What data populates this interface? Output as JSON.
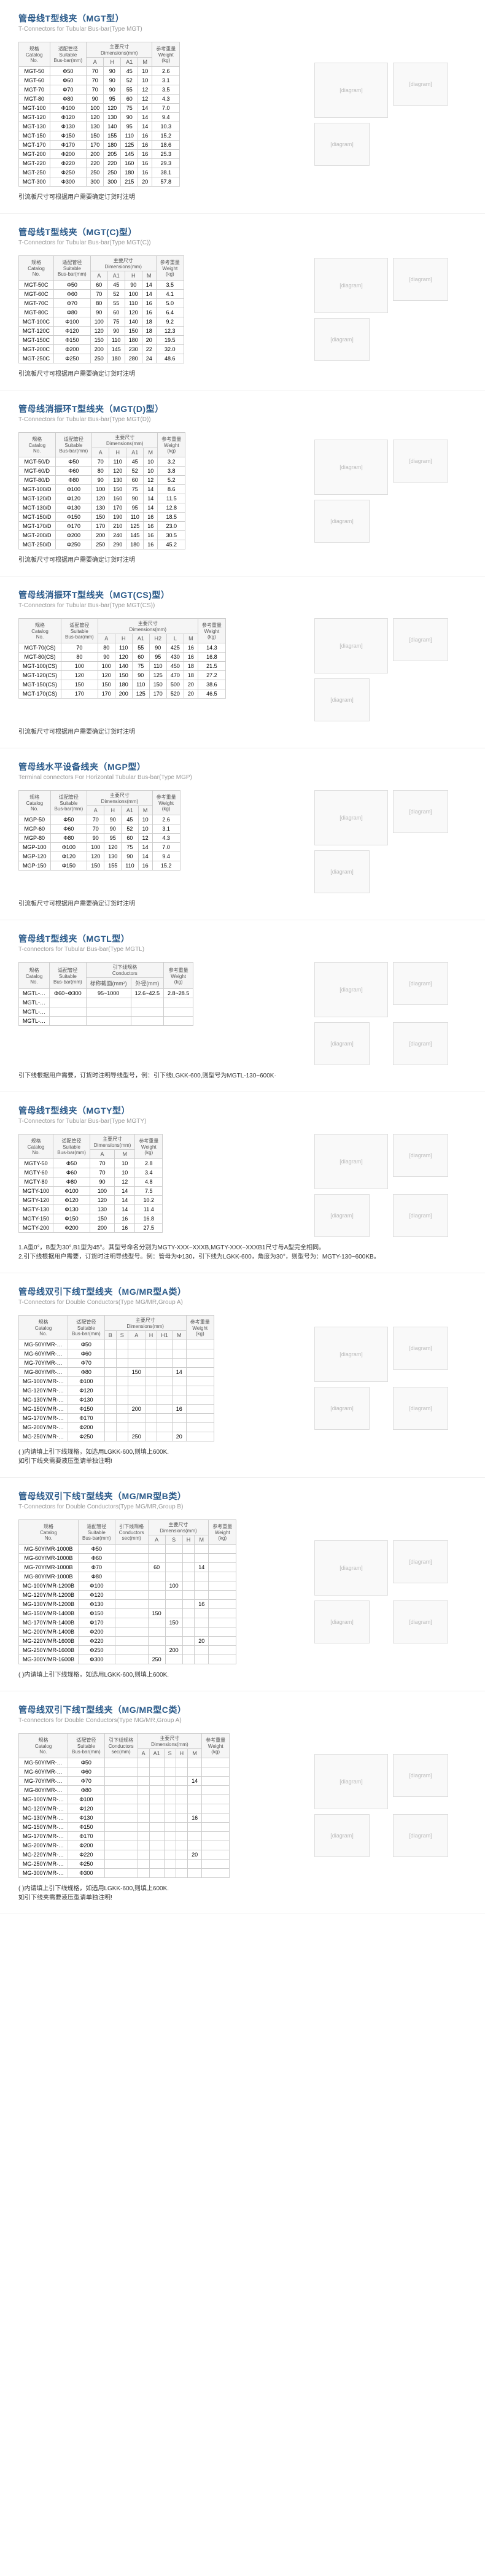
{
  "sections": [
    {
      "id": "mgt",
      "title_cn": "管母线T型线夹（MGT型）",
      "title_en": "T-Connectors for Tubular Bus-bar(Type MGT)",
      "cols": [
        "规格\\nCatalog\\nNo.",
        "适配管径\\nSuitable\\nBus-bar(mm)",
        "主要尺寸\\nDimensions(mm)",
        "",
        "",
        "",
        "参考重量\\nWeight\\n(kg)"
      ],
      "subcols": [
        "",
        "",
        "A",
        "H",
        "A1",
        "M",
        ""
      ],
      "rows": [
        [
          "MGT-50",
          "Φ50",
          "70",
          "90",
          "45",
          "10",
          "2.6"
        ],
        [
          "MGT-60",
          "Φ60",
          "70",
          "90",
          "52",
          "10",
          "3.1"
        ],
        [
          "MGT-70",
          "Φ70",
          "70",
          "90",
          "55",
          "12",
          "3.5"
        ],
        [
          "MGT-80",
          "Φ80",
          "90",
          "95",
          "60",
          "12",
          "4.3"
        ],
        [
          "MGT-100",
          "Φ100",
          "100",
          "120",
          "75",
          "14",
          "7.0"
        ],
        [
          "MGT-120",
          "Φ120",
          "120",
          "130",
          "90",
          "14",
          "9.4"
        ],
        [
          "MGT-130",
          "Φ130",
          "130",
          "140",
          "95",
          "14",
          "10.3"
        ],
        [
          "MGT-150",
          "Φ150",
          "150",
          "155",
          "110",
          "16",
          "15.2"
        ],
        [
          "MGT-170",
          "Φ170",
          "170",
          "180",
          "125",
          "16",
          "18.6"
        ],
        [
          "MGT-200",
          "Φ200",
          "200",
          "205",
          "145",
          "16",
          "25.3"
        ],
        [
          "MGT-220",
          "Φ220",
          "220",
          "220",
          "160",
          "16",
          "29.3"
        ],
        [
          "MGT-250",
          "Φ250",
          "250",
          "250",
          "180",
          "16",
          "38.1"
        ],
        [
          "MGT-300",
          "Φ300",
          "300",
          "300",
          "215",
          "20",
          "57.8"
        ]
      ],
      "note": "引流板尺寸可根据用户需要确定订货时注明",
      "diag_count": 3
    },
    {
      "id": "mgtc",
      "title_cn": "管母线T型线夹（MGT(C)型）",
      "title_en": "T-Connectors for Tubular Bus-bar(Type MGT(C))",
      "cols": [
        "规格\\nCatalog\\nNo.",
        "适配管径\\nSuitable\\nBus-bar(mm)",
        "主要尺寸\\nDimensions(mm)",
        "",
        "",
        "",
        "参考重量\\nWeight\\n(kg)"
      ],
      "subcols": [
        "",
        "",
        "A",
        "A1",
        "H",
        "M",
        ""
      ],
      "rows": [
        [
          "MGT-50C",
          "Φ50",
          "60",
          "45",
          "90",
          "14",
          "3.5"
        ],
        [
          "MGT-60C",
          "Φ60",
          "70",
          "52",
          "100",
          "14",
          "4.1"
        ],
        [
          "MGT-70C",
          "Φ70",
          "80",
          "55",
          "110",
          "16",
          "5.0"
        ],
        [
          "MGT-80C",
          "Φ80",
          "90",
          "60",
          "120",
          "16",
          "6.4"
        ],
        [
          "MGT-100C",
          "Φ100",
          "100",
          "75",
          "140",
          "18",
          "9.2"
        ],
        [
          "MGT-120C",
          "Φ120",
          "120",
          "90",
          "150",
          "18",
          "12.3"
        ],
        [
          "MGT-150C",
          "Φ150",
          "150",
          "110",
          "180",
          "20",
          "19.5"
        ],
        [
          "MGT-200C",
          "Φ200",
          "200",
          "145",
          "230",
          "22",
          "32.0"
        ],
        [
          "MGT-250C",
          "Φ250",
          "250",
          "180",
          "280",
          "24",
          "48.6"
        ]
      ],
      "note": "引流板尺寸可根据用户需要确定订货时注明",
      "diag_count": 3
    },
    {
      "id": "mgtd",
      "title_cn": "管母线消振环T型线夹（MGT(D)型）",
      "title_en": "T-Connectors for Tubular Bus-bar(Type MGT(D))",
      "cols": [
        "规格\\nCatalog\\nNo.",
        "适配管径\\nSuitable\\nBus-bar(mm)",
        "主要尺寸\\nDimensions(mm)",
        "",
        "",
        "",
        "参考重量\\nWeight\\n(kg)"
      ],
      "subcols": [
        "",
        "",
        "A",
        "H",
        "A1",
        "M",
        ""
      ],
      "rows": [
        [
          "MGT-50/D",
          "Φ50",
          "70",
          "110",
          "45",
          "10",
          "3.2"
        ],
        [
          "MGT-60/D",
          "Φ60",
          "80",
          "120",
          "52",
          "10",
          "3.8"
        ],
        [
          "MGT-80/D",
          "Φ80",
          "90",
          "130",
          "60",
          "12",
          "5.2"
        ],
        [
          "MGT-100/D",
          "Φ100",
          "100",
          "150",
          "75",
          "14",
          "8.6"
        ],
        [
          "MGT-120/D",
          "Φ120",
          "120",
          "160",
          "90",
          "14",
          "11.5"
        ],
        [
          "MGT-130/D",
          "Φ130",
          "130",
          "170",
          "95",
          "14",
          "12.8"
        ],
        [
          "MGT-150/D",
          "Φ150",
          "150",
          "190",
          "110",
          "16",
          "18.5"
        ],
        [
          "MGT-170/D",
          "Φ170",
          "170",
          "210",
          "125",
          "16",
          "23.0"
        ],
        [
          "MGT-200/D",
          "Φ200",
          "200",
          "240",
          "145",
          "16",
          "30.5"
        ],
        [
          "MGT-250/D",
          "Φ250",
          "250",
          "290",
          "180",
          "16",
          "45.2"
        ]
      ],
      "note": "引流板尺寸可根据用户需要确定订货时注明",
      "diag_count": 3
    },
    {
      "id": "mgtcs",
      "title_cn": "管母线消振环T型线夹（MGT(CS)型）",
      "title_en": "T-Connectors for Tubular Bus-bar(Type MGT(CS))",
      "cols": [
        "规格\\nCatalog\\nNo.",
        "适配管径\\nSuitable\\nBus-bar(mm)",
        "主要尺寸\\nDimensions(mm)",
        "",
        "",
        "",
        "",
        "",
        "参考重量\\nWeight\\n(kg)"
      ],
      "subcols": [
        "",
        "",
        "A",
        "H",
        "A1",
        "H2",
        "L",
        "M",
        ""
      ],
      "rows": [
        [
          "MGT-70(CS)",
          "70",
          "80",
          "110",
          "55",
          "90",
          "425",
          "16",
          "14.3"
        ],
        [
          "MGT-80(CS)",
          "80",
          "90",
          "120",
          "60",
          "95",
          "430",
          "16",
          "16.8"
        ],
        [
          "MGT-100(CS)",
          "100",
          "100",
          "140",
          "75",
          "110",
          "450",
          "18",
          "21.5"
        ],
        [
          "MGT-120(CS)",
          "120",
          "120",
          "150",
          "90",
          "125",
          "470",
          "18",
          "27.2"
        ],
        [
          "MGT-150(CS)",
          "150",
          "150",
          "180",
          "110",
          "150",
          "500",
          "20",
          "38.6"
        ],
        [
          "MGT-170(CS)",
          "170",
          "170",
          "200",
          "125",
          "170",
          "520",
          "20",
          "46.5"
        ]
      ],
      "note": "引流板尺寸可根据用户需要确定订货时注明",
      "diag_count": 3
    },
    {
      "id": "mgp",
      "title_cn": "管母线水平设备线夹（MGP型）",
      "title_en": "Terminal connectors For Horizontal Tubular Bus-bar(Type MGP)",
      "cols": [
        "规格\\nCatalog\\nNo.",
        "适配管径\\nSuitable\\nBus-bar(mm)",
        "主要尺寸\\nDimensions(mm)",
        "",
        "",
        "",
        "参考重量\\nWeight\\n(kg)"
      ],
      "subcols": [
        "",
        "",
        "A",
        "H",
        "A1",
        "M",
        ""
      ],
      "rows": [
        [
          "MGP-50",
          "Φ50",
          "70",
          "90",
          "45",
          "10",
          "2.6"
        ],
        [
          "MGP-60",
          "Φ60",
          "70",
          "90",
          "52",
          "10",
          "3.1"
        ],
        [
          "MGP-80",
          "Φ80",
          "90",
          "95",
          "60",
          "12",
          "4.3"
        ],
        [
          "MGP-100",
          "Φ100",
          "100",
          "120",
          "75",
          "14",
          "7.0"
        ],
        [
          "MGP-120",
          "Φ120",
          "120",
          "130",
          "90",
          "14",
          "9.4"
        ],
        [
          "MGP-150",
          "Φ150",
          "150",
          "155",
          "110",
          "16",
          "15.2"
        ]
      ],
      "note": "引流板尺寸可根据用户需要确定订货时注明",
      "diag_count": 3
    },
    {
      "id": "mgtl",
      "title_cn": "管母线T型线夹（MGTL型）",
      "title_en": "T-connectors for Tubular Bus-bar(Type MGTL)",
      "cols": [
        "规格\\nCatalog\\nNo.",
        "适配管径\\nSuitable\\nBus-bar(mm)",
        "引下线规格\\nConductors",
        "",
        "参考重量\\nWeight\\n(kg)"
      ],
      "subcols": [
        "",
        "",
        "标称截面(mm²)",
        "外径(mm)",
        ""
      ],
      "rows": [
        [
          "MGTL-…",
          "Φ60~Φ300",
          "95~1000",
          "12.6~42.5",
          "2.8~28.5"
        ],
        [
          "MGTL-…",
          "",
          "",
          "",
          ""
        ],
        [
          "MGTL-…",
          "",
          "",
          "",
          ""
        ],
        [
          "MGTL-…",
          "",
          "",
          "",
          ""
        ]
      ],
      "note": "引下线根据用户需要，订货时注明导线型号，例：引下线LGKK-600,则型号为MGTL-130~600K·",
      "diag_count": 4
    },
    {
      "id": "mgty",
      "title_cn": "管母线T型线夹（MGTY型）",
      "title_en": "T-Connectors for Tubular Bus-bar(Type MGTY)",
      "cols": [
        "规格\\nCatalog\\nNo.",
        "适配管径\\nSuitable\\nBus-bar(mm)",
        "主要尺寸\\nDimensions(mm)",
        "",
        "参考重量\\nWeight\\n(kg)"
      ],
      "subcols": [
        "",
        "",
        "A",
        "M",
        ""
      ],
      "rows": [
        [
          "MGTY-50",
          "Φ50",
          "70",
          "10",
          "2.8"
        ],
        [
          "MGTY-60",
          "Φ60",
          "70",
          "10",
          "3.4"
        ],
        [
          "MGTY-80",
          "Φ80",
          "90",
          "12",
          "4.8"
        ],
        [
          "MGTY-100",
          "Φ100",
          "100",
          "14",
          "7.5"
        ],
        [
          "MGTY-120",
          "Φ120",
          "120",
          "14",
          "10.2"
        ],
        [
          "MGTY-130",
          "Φ130",
          "130",
          "14",
          "11.4"
        ],
        [
          "MGTY-150",
          "Φ150",
          "150",
          "16",
          "16.8"
        ],
        [
          "MGTY-200",
          "Φ200",
          "200",
          "16",
          "27.5"
        ]
      ],
      "note": "1.A型0°，B型为30°,B1型为45°。其型号命名分别为MGTY-XXX~XXXB,MGTY-XXX~XXXB1尺寸与A型完全相同。\\n2.引下线根据用户需要，订货时注明导线型号。例：管母为Φ130，引下线为LGKK-600，角度为30°，则型号为：MGTY-130~600KB。",
      "diag_count": 4
    },
    {
      "id": "mgmra",
      "title_cn": "管母线双引下线T型线夹（MG/MR型A类）",
      "title_en": "T-Connectors for Double Conductors(Type MG/MR,Group A)",
      "cols": [
        "规格\\nCatalog\\nNo.",
        "适配管径\\nSuitable\\nBus-bar(mm)",
        "主要尺寸\\nDimensions(mm)",
        "",
        "",
        "",
        "",
        "",
        "参考重量\\nWeight\\n(kg)"
      ],
      "subcols": [
        "",
        "",
        "B",
        "S",
        "A",
        "H",
        "H1",
        "M",
        ""
      ],
      "rows": [
        [
          "MG-50Y/MR-…",
          "Φ50",
          "",
          "",
          "",
          "",
          "",
          "",
          ""
        ],
        [
          "MG-60Y/MR-…",
          "Φ60",
          "",
          "",
          "",
          "",
          "",
          "",
          ""
        ],
        [
          "MG-70Y/MR-…",
          "Φ70",
          "",
          "",
          "",
          "",
          "",
          "",
          ""
        ],
        [
          "MG-80Y/MR-…",
          "Φ80",
          "",
          "",
          "150",
          "",
          "",
          "14",
          ""
        ],
        [
          "MG-100Y/MR-…",
          "Φ100",
          "",
          "",
          "",
          "",
          "",
          "",
          ""
        ],
        [
          "MG-120Y/MR-…",
          "Φ120",
          "",
          "",
          "",
          "",
          "",
          "",
          ""
        ],
        [
          "MG-130Y/MR-…",
          "Φ130",
          "",
          "",
          "",
          "",
          "",
          "",
          ""
        ],
        [
          "MG-150Y/MR-…",
          "Φ150",
          "",
          "",
          "200",
          "",
          "",
          "16",
          ""
        ],
        [
          "MG-170Y/MR-…",
          "Φ170",
          "",
          "",
          "",
          "",
          "",
          "",
          ""
        ],
        [
          "MG-200Y/MR-…",
          "Φ200",
          "",
          "",
          "",
          "",
          "",
          "",
          ""
        ],
        [
          "MG-250Y/MR-…",
          "Φ250",
          "",
          "",
          "250",
          "",
          "",
          "20",
          ""
        ]
      ],
      "note": "(  )内请填上引下线规格，如选用LGKK-600,则填上600K.\\n如引下线夹需要液压型请单独注明!",
      "diag_count": 4
    },
    {
      "id": "mgmrb",
      "title_cn": "管母线双引下线T型线夹（MG/MR型B类）",
      "title_en": "T-Connectors for Double Conductors(Type MG/MR,Group B)",
      "cols": [
        "规格\\nCatalog\\nNo.",
        "适配管径\\nSuitable\\nBus-bar(mm)",
        "引下线规格\\nConductors\\nsec(mm)",
        "主要尺寸\\nDimensions(mm)",
        "",
        "",
        "",
        "参考重量\\nWeight\\n(kg)"
      ],
      "subcols": [
        "",
        "",
        "",
        "A",
        "S",
        "H",
        "M",
        ""
      ],
      "rows": [
        [
          "MG-50Y/MR-1000B",
          "Φ50",
          "",
          "",
          "",
          "",
          "",
          ""
        ],
        [
          "MG-60Y/MR-1000B",
          "Φ60",
          "",
          "",
          "",
          "",
          "",
          ""
        ],
        [
          "MG-70Y/MR-1000B",
          "Φ70",
          "",
          "60",
          "",
          "",
          "14",
          ""
        ],
        [
          "MG-80Y/MR-1000B",
          "Φ80",
          "",
          "",
          "",
          "",
          "",
          ""
        ],
        [
          "MG-100Y/MR-1200B",
          "Φ100",
          "",
          "",
          "100",
          "",
          "",
          ""
        ],
        [
          "MG-120Y/MR-1200B",
          "Φ120",
          "",
          "",
          "",
          "",
          "",
          ""
        ],
        [
          "MG-130Y/MR-1200B",
          "Φ130",
          "",
          "",
          "",
          "",
          "16",
          ""
        ],
        [
          "MG-150Y/MR-1400B",
          "Φ150",
          "",
          "150",
          "",
          "",
          "",
          ""
        ],
        [
          "MG-170Y/MR-1400B",
          "Φ170",
          "",
          "",
          "150",
          "",
          "",
          ""
        ],
        [
          "MG-200Y/MR-1400B",
          "Φ200",
          "",
          "",
          "",
          "",
          "",
          ""
        ],
        [
          "MG-220Y/MR-1600B",
          "Φ220",
          "",
          "",
          "",
          "",
          "20",
          ""
        ],
        [
          "MG-250Y/MR-1600B",
          "Φ250",
          "",
          "",
          "200",
          "",
          "",
          ""
        ],
        [
          "MG-300Y/MR-1600B",
          "Φ300",
          "",
          "250",
          "",
          "",
          "",
          ""
        ]
      ],
      "note": "(  )内请填上引下线规格，如选用LGKK-600,则填上600K.",
      "diag_count": 4
    },
    {
      "id": "mgmrc",
      "title_cn": "管母线双引下线T型线夹（MG/MR型C类）",
      "title_en": "T-connectors for Double Conductors(Type MG/MR,Group A)",
      "cols": [
        "规格\\nCatalog\\nNo.",
        "适配管径\\nSuitable\\nBus-bar(mm)",
        "引下线规格\\nConductors\\nsec(mm)",
        "主要尺寸\\nDimensions(mm)",
        "",
        "",
        "",
        "",
        "参考重量\\nWeight\\n(kg)"
      ],
      "subcols": [
        "",
        "",
        "",
        "A",
        "A1",
        "S",
        "H",
        "M",
        ""
      ],
      "rows": [
        [
          "MG-50Y/MR-…",
          "Φ50",
          "",
          "",
          "",
          "",
          "",
          "",
          ""
        ],
        [
          "MG-60Y/MR-…",
          "Φ60",
          "",
          "",
          "",
          "",
          "",
          "",
          ""
        ],
        [
          "MG-70Y/MR-…",
          "Φ70",
          "",
          "",
          "",
          "",
          "",
          "14",
          ""
        ],
        [
          "MG-80Y/MR-…",
          "Φ80",
          "",
          "",
          "",
          "",
          "",
          "",
          ""
        ],
        [
          "MG-100Y/MR-…",
          "Φ100",
          "",
          "",
          "",
          "",
          "",
          "",
          ""
        ],
        [
          "MG-120Y/MR-…",
          "Φ120",
          "",
          "",
          "",
          "",
          "",
          "",
          ""
        ],
        [
          "MG-130Y/MR-…",
          "Φ130",
          "",
          "",
          "",
          "",
          "",
          "16",
          ""
        ],
        [
          "MG-150Y/MR-…",
          "Φ150",
          "",
          "",
          "",
          "",
          "",
          "",
          ""
        ],
        [
          "MG-170Y/MR-…",
          "Φ170",
          "",
          "",
          "",
          "",
          "",
          "",
          ""
        ],
        [
          "MG-200Y/MR-…",
          "Φ200",
          "",
          "",
          "",
          "",
          "",
          "",
          ""
        ],
        [
          "MG-220Y/MR-…",
          "Φ220",
          "",
          "",
          "",
          "",
          "",
          "20",
          ""
        ],
        [
          "MG-250Y/MR-…",
          "Φ250",
          "",
          "",
          "",
          "",
          "",
          "",
          ""
        ],
        [
          "MG-300Y/MR-…",
          "Φ300",
          "",
          "",
          "",
          "",
          "",
          "",
          ""
        ]
      ],
      "note": "(  )内请填上引下线规格，如选用LGKK-600,则填上600K.\\n如引下线夹需要液压型请单独注明!",
      "diag_count": 4
    }
  ]
}
